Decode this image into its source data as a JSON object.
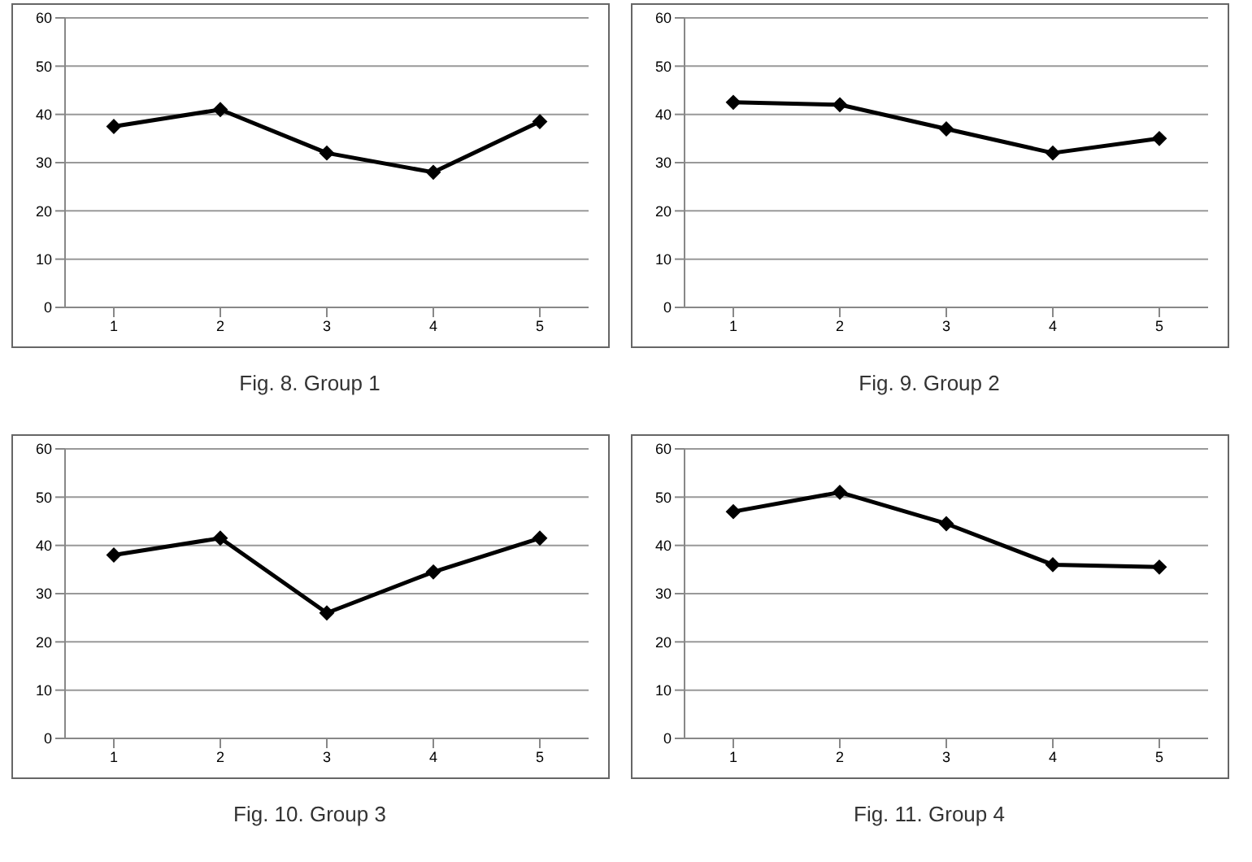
{
  "chart_data": [
    {
      "type": "line",
      "title": "Fig. 8. Group 1",
      "categories": [
        "1",
        "2",
        "3",
        "4",
        "5"
      ],
      "series": [
        {
          "color": "#000000",
          "values": [
            37.5,
            41,
            32,
            28,
            38.5
          ]
        }
      ],
      "ylim": [
        0,
        60
      ],
      "yticks": [
        0,
        10,
        20,
        30,
        40,
        50,
        60
      ],
      "grid": "y",
      "marker": "diamond",
      "line_style": "solid",
      "legend": false
    },
    {
      "type": "line",
      "title": "Fig. 9. Group 2",
      "categories": [
        "1",
        "2",
        "3",
        "4",
        "5"
      ],
      "series": [
        {
          "color": "#000000",
          "values": [
            42.5,
            42,
            37,
            32,
            35
          ]
        }
      ],
      "ylim": [
        0,
        60
      ],
      "yticks": [
        0,
        10,
        20,
        30,
        40,
        50,
        60
      ],
      "grid": "y",
      "marker": "diamond",
      "line_style": "solid",
      "legend": false
    },
    {
      "type": "line",
      "title": "Fig. 10. Group 3",
      "categories": [
        "1",
        "2",
        "3",
        "4",
        "5"
      ],
      "series": [
        {
          "color": "#000000",
          "values": [
            38,
            41.5,
            26,
            34.5,
            41.5
          ]
        }
      ],
      "ylim": [
        0,
        60
      ],
      "yticks": [
        0,
        10,
        20,
        30,
        40,
        50,
        60
      ],
      "grid": "y",
      "marker": "diamond",
      "line_style": "solid",
      "legend": false
    },
    {
      "type": "line",
      "title": "Fig. 11. Group 4",
      "categories": [
        "1",
        "2",
        "3",
        "4",
        "5"
      ],
      "series": [
        {
          "color": "#000000",
          "values": [
            47,
            51,
            44.5,
            36,
            35.5
          ]
        }
      ],
      "ylim": [
        0,
        60
      ],
      "yticks": [
        0,
        10,
        20,
        30,
        40,
        50,
        60
      ],
      "grid": "y",
      "marker": "diamond",
      "line_style": "solid",
      "legend": false
    }
  ]
}
